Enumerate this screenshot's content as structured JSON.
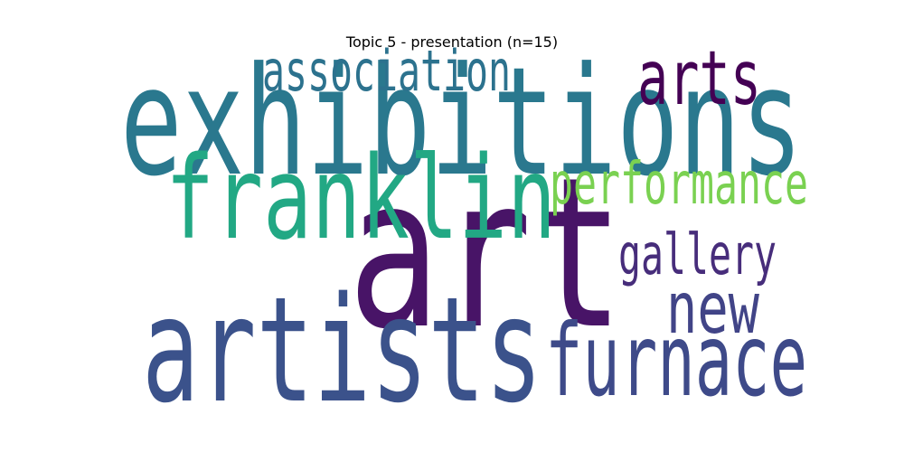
{
  "chart_data": {
    "type": "wordcloud",
    "title": "Topic 5 - presentation (n=15)",
    "words": [
      {
        "text": "art",
        "weight": 1.0,
        "color": "#481467"
      },
      {
        "text": "exhibitions",
        "weight": 0.72,
        "color": "#2a788e"
      },
      {
        "text": "artists",
        "weight": 0.7,
        "color": "#3b528b"
      },
      {
        "text": "franklin",
        "weight": 0.55,
        "color": "#22a884"
      },
      {
        "text": "furnace",
        "weight": 0.48,
        "color": "#3e4a89"
      },
      {
        "text": "arts",
        "weight": 0.36,
        "color": "#440154"
      },
      {
        "text": "new",
        "weight": 0.34,
        "color": "#414487"
      },
      {
        "text": "performance",
        "weight": 0.28,
        "color": "#7ad151"
      },
      {
        "text": "association",
        "weight": 0.27,
        "color": "#2c728e"
      },
      {
        "text": "gallery",
        "weight": 0.27,
        "color": "#472d7b"
      }
    ]
  }
}
